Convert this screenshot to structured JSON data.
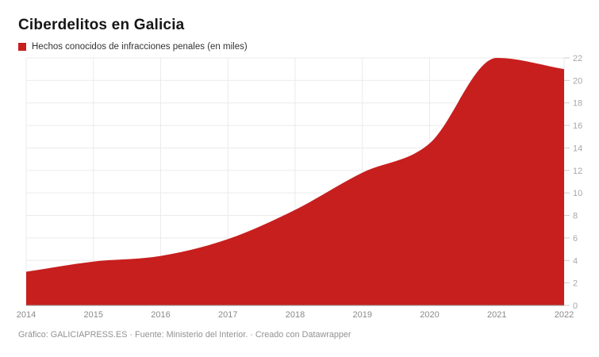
{
  "header": {
    "title": "Ciberdelitos en Galicia",
    "legend_label": "Hechos conocidos de infracciones penales (en miles)"
  },
  "footer": {
    "text": "Gráfico: GALICIAPRESS.ES · Fuente: Ministerio del Interior. · Creado con Datawrapper"
  },
  "chart_data": {
    "type": "area",
    "title": "Ciberdelitos en Galicia",
    "series": [
      {
        "name": "Hechos conocidos de infracciones penales (en miles)",
        "values": [
          3.0,
          3.9,
          4.4,
          5.9,
          8.5,
          11.8,
          14.4,
          22.0,
          21.0
        ]
      }
    ],
    "x": [
      2014,
      2015,
      2016,
      2017,
      2018,
      2019,
      2020,
      2021,
      2022
    ],
    "xlabel": "",
    "ylabel": "",
    "units": "miles",
    "ylim": [
      0,
      22
    ],
    "yticks": [
      0,
      2,
      4,
      6,
      8,
      10,
      12,
      14,
      16,
      18,
      20,
      22
    ],
    "grid": true,
    "legend_position": "top-left",
    "curve": "smooth",
    "colors": {
      "area": "#c71f1e",
      "grid": "#ebebeb",
      "baseline": "#9a9a9a",
      "tick_mark": "#cccccc",
      "y_tick_text": "#a8a8a8",
      "x_tick_text": "#8a8a8a"
    }
  }
}
